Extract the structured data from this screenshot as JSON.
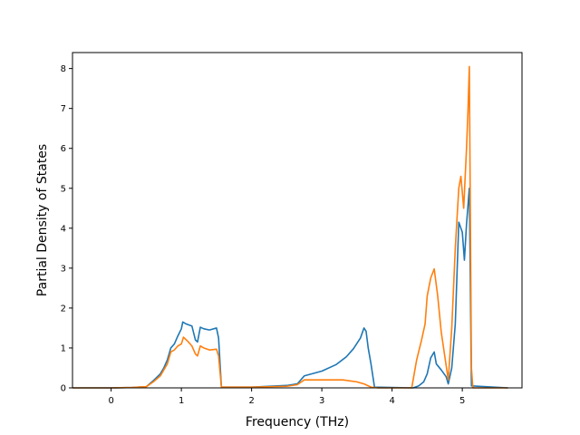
{
  "chart_data": {
    "type": "line",
    "title": "",
    "xlabel": "Frequency (THz)",
    "ylabel": "Partial Density of States",
    "xlim": [
      -0.55,
      5.85
    ],
    "ylim": [
      0,
      8.4
    ],
    "xticks": [
      0,
      1,
      2,
      3,
      4,
      5
    ],
    "yticks": [
      0,
      1,
      2,
      3,
      4,
      5,
      6,
      7,
      8
    ],
    "grid": false,
    "legend": "none",
    "series": [
      {
        "color": "#1f77b4",
        "points": [
          [
            -0.55,
            0
          ],
          [
            0.0,
            0
          ],
          [
            0.3,
            0.01
          ],
          [
            0.5,
            0.03
          ],
          [
            0.6,
            0.18
          ],
          [
            0.7,
            0.35
          ],
          [
            0.75,
            0.5
          ],
          [
            0.8,
            0.7
          ],
          [
            0.85,
            1.0
          ],
          [
            0.9,
            1.1
          ],
          [
            0.95,
            1.3
          ],
          [
            1.0,
            1.48
          ],
          [
            1.02,
            1.65
          ],
          [
            1.07,
            1.6
          ],
          [
            1.15,
            1.55
          ],
          [
            1.2,
            1.2
          ],
          [
            1.23,
            1.15
          ],
          [
            1.27,
            1.52
          ],
          [
            1.32,
            1.48
          ],
          [
            1.4,
            1.45
          ],
          [
            1.5,
            1.5
          ],
          [
            1.53,
            1.25
          ],
          [
            1.57,
            0.02
          ],
          [
            2.0,
            0.02
          ],
          [
            2.5,
            0.06
          ],
          [
            2.65,
            0.1
          ],
          [
            2.75,
            0.3
          ],
          [
            3.0,
            0.42
          ],
          [
            3.2,
            0.58
          ],
          [
            3.35,
            0.78
          ],
          [
            3.45,
            0.98
          ],
          [
            3.55,
            1.25
          ],
          [
            3.6,
            1.5
          ],
          [
            3.63,
            1.42
          ],
          [
            3.66,
            1.0
          ],
          [
            3.7,
            0.6
          ],
          [
            3.75,
            0.02
          ],
          [
            4.3,
            0
          ],
          [
            4.38,
            0.05
          ],
          [
            4.45,
            0.15
          ],
          [
            4.5,
            0.35
          ],
          [
            4.55,
            0.75
          ],
          [
            4.6,
            0.9
          ],
          [
            4.63,
            0.6
          ],
          [
            4.7,
            0.45
          ],
          [
            4.77,
            0.28
          ],
          [
            4.8,
            0.1
          ],
          [
            4.85,
            0.5
          ],
          [
            4.9,
            1.6
          ],
          [
            4.95,
            4.15
          ],
          [
            5.0,
            3.9
          ],
          [
            5.03,
            3.2
          ],
          [
            5.06,
            4.1
          ],
          [
            5.1,
            5.0
          ],
          [
            5.13,
            0.05
          ],
          [
            5.65,
            0
          ]
        ]
      },
      {
        "color": "#ff7f0e",
        "points": [
          [
            -0.55,
            0
          ],
          [
            0.0,
            0
          ],
          [
            0.3,
            0.01
          ],
          [
            0.5,
            0.03
          ],
          [
            0.6,
            0.15
          ],
          [
            0.7,
            0.3
          ],
          [
            0.75,
            0.45
          ],
          [
            0.8,
            0.6
          ],
          [
            0.85,
            0.9
          ],
          [
            0.9,
            0.95
          ],
          [
            0.95,
            1.05
          ],
          [
            1.0,
            1.1
          ],
          [
            1.03,
            1.27
          ],
          [
            1.1,
            1.15
          ],
          [
            1.15,
            1.05
          ],
          [
            1.2,
            0.85
          ],
          [
            1.23,
            0.8
          ],
          [
            1.27,
            1.05
          ],
          [
            1.32,
            1.0
          ],
          [
            1.4,
            0.95
          ],
          [
            1.5,
            0.97
          ],
          [
            1.53,
            0.8
          ],
          [
            1.57,
            0.02
          ],
          [
            2.0,
            0.02
          ],
          [
            2.5,
            0.04
          ],
          [
            2.65,
            0.08
          ],
          [
            2.75,
            0.2
          ],
          [
            3.0,
            0.2
          ],
          [
            3.3,
            0.2
          ],
          [
            3.5,
            0.15
          ],
          [
            3.6,
            0.1
          ],
          [
            3.7,
            0.02
          ],
          [
            3.8,
            0
          ],
          [
            4.28,
            0
          ],
          [
            4.3,
            0.2
          ],
          [
            4.35,
            0.7
          ],
          [
            4.42,
            1.2
          ],
          [
            4.47,
            1.6
          ],
          [
            4.5,
            2.3
          ],
          [
            4.55,
            2.75
          ],
          [
            4.6,
            2.98
          ],
          [
            4.65,
            2.3
          ],
          [
            4.7,
            1.4
          ],
          [
            4.75,
            0.8
          ],
          [
            4.8,
            0.2
          ],
          [
            4.85,
            1.5
          ],
          [
            4.9,
            3.5
          ],
          [
            4.95,
            5.0
          ],
          [
            4.98,
            5.3
          ],
          [
            5.02,
            4.5
          ],
          [
            5.06,
            6.0
          ],
          [
            5.08,
            6.9
          ],
          [
            5.1,
            8.05
          ],
          [
            5.13,
            0.5
          ],
          [
            5.15,
            0
          ],
          [
            5.65,
            0
          ]
        ]
      }
    ]
  }
}
